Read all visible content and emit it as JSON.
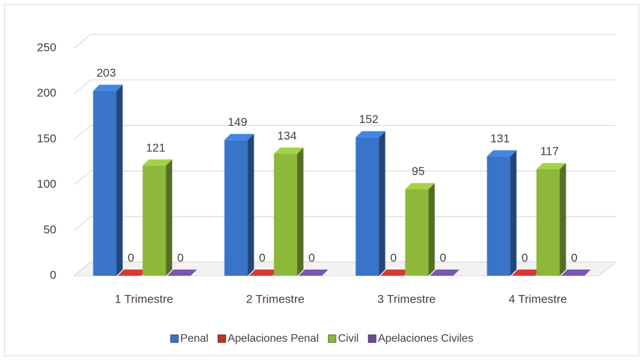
{
  "chart_data": {
    "type": "bar3d",
    "categories": [
      "1 Trimestre",
      "2 Trimestre",
      "3 Trimestre",
      "4 Trimestre"
    ],
    "series": [
      {
        "name": "Penal",
        "color": "#3a74c9",
        "values": [
          203,
          149,
          152,
          131
        ]
      },
      {
        "name": "Apelaciones Penal",
        "color": "#c0302a",
        "values": [
          0,
          0,
          0,
          0
        ]
      },
      {
        "name": "Civil",
        "color": "#8db83a",
        "values": [
          121,
          134,
          95,
          117
        ]
      },
      {
        "name": "Apelaciones Civiles",
        "color": "#6a4a9c",
        "values": [
          0,
          0,
          0,
          0
        ]
      }
    ],
    "ylim": [
      0,
      250
    ],
    "yticks": [
      0,
      50,
      100,
      150,
      200,
      250
    ],
    "grid": true,
    "legend": "bottom"
  }
}
